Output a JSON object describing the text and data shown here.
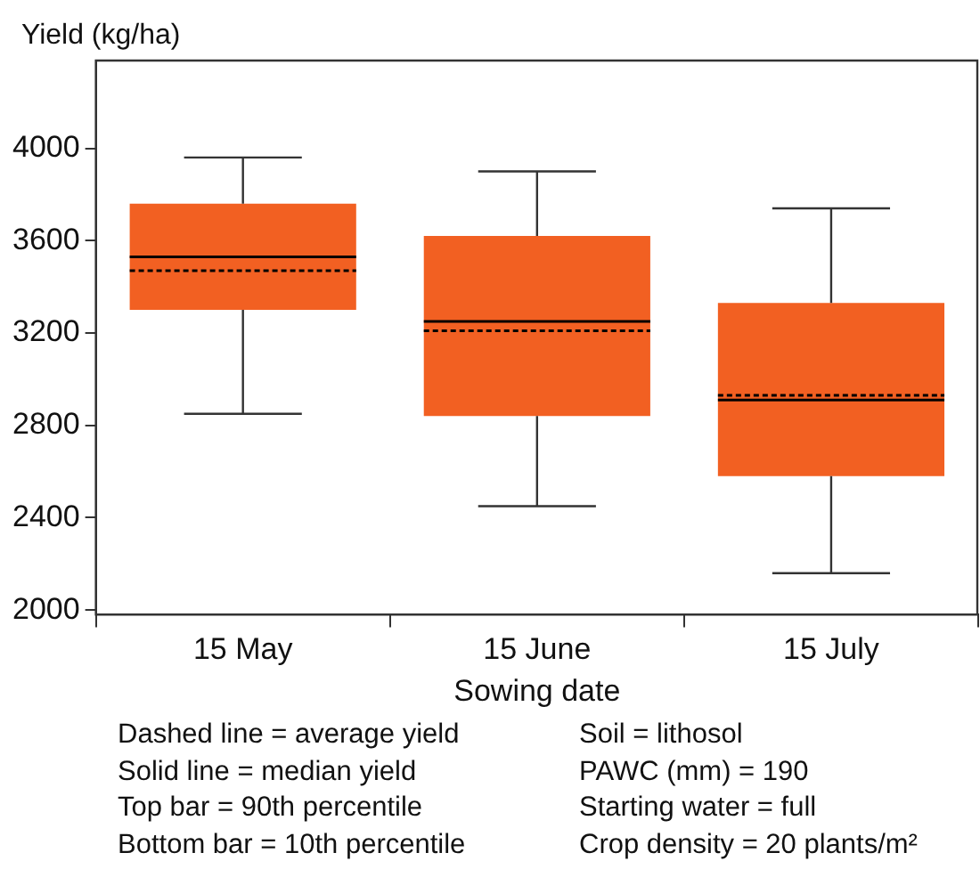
{
  "chart_data": {
    "type": "box",
    "ylabel": "Yield (kg/ha)",
    "xlabel": "Sowing date",
    "categories": [
      "15 May",
      "15 June",
      "15 July"
    ],
    "color": "#f26022",
    "boxes": [
      {
        "low": 2850,
        "q1": 3300,
        "median": 3530,
        "q3": 3760,
        "high": 3960,
        "mean": 3470
      },
      {
        "low": 2450,
        "q1": 2840,
        "median": 3250,
        "q3": 3620,
        "high": 3900,
        "mean": 3210
      },
      {
        "low": 2160,
        "q1": 2580,
        "median": 2910,
        "q3": 3330,
        "high": 3740,
        "mean": 2930
      }
    ],
    "ylim": [
      1980,
      4380
    ],
    "yticks": [
      2000,
      2400,
      2800,
      3200,
      3600,
      4000
    ],
    "annotations": [
      "Dashed line = average yield",
      "Solid line = median yield",
      "Top bar = 90th percentile",
      "Bottom bar = 10th percentile",
      "Soil = lithosol",
      "PAWC (mm) = 190",
      "Starting water = full",
      "Crop density = 20 plants/m²"
    ]
  }
}
